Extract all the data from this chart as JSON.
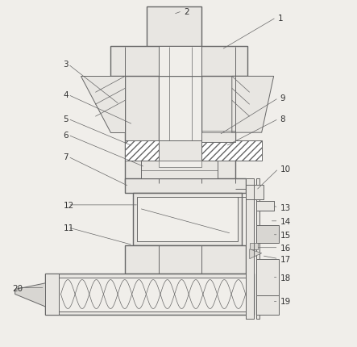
{
  "bg_color": "#f0eeea",
  "line_color": "#666666",
  "figsize": [
    4.43,
    4.31
  ],
  "dpi": 100,
  "label_fontsize": 7.5,
  "label_color": "#333333"
}
